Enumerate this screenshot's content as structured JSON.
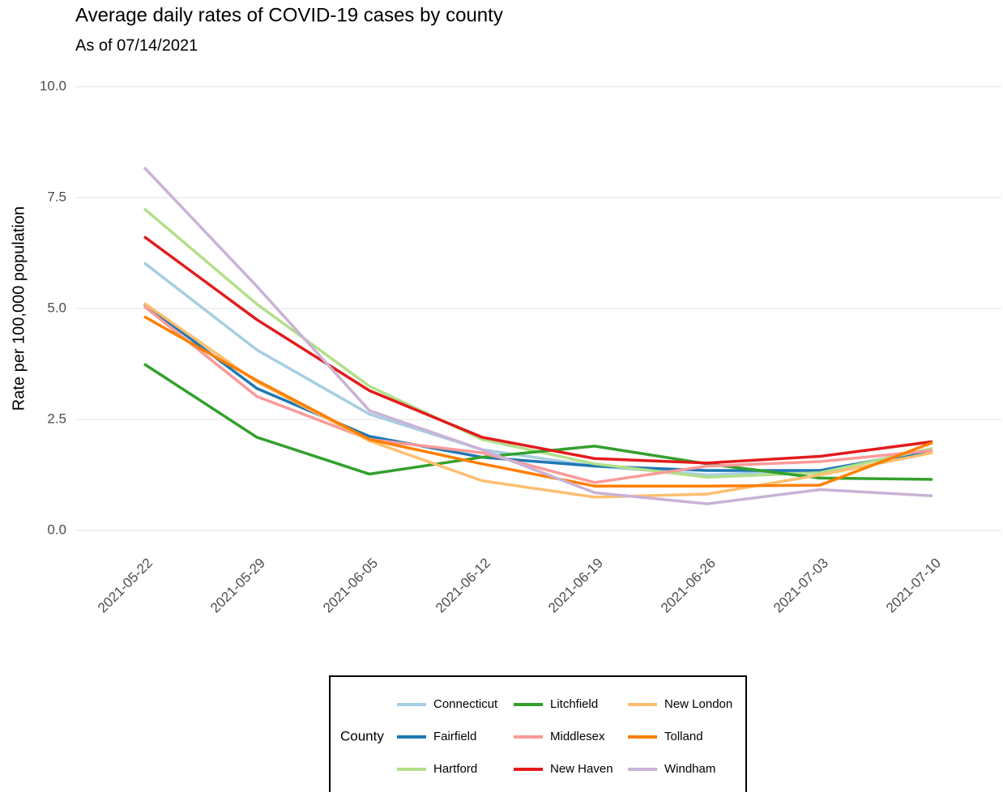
{
  "chart_data": {
    "type": "line",
    "title": "Average daily rates of COVID-19 cases by county",
    "subtitle": "As of 07/14/2021",
    "y_label": "Rate per 100,000 population",
    "legend_title": "County",
    "legend": "bottom",
    "grid": true,
    "x": [
      "2021-05-22",
      "2021-05-29",
      "2021-06-05",
      "2021-06-12",
      "2021-06-19",
      "2021-06-26",
      "2021-07-03",
      "2021-07-10"
    ],
    "ylim": [
      0,
      10
    ],
    "yticks": [
      {
        "value": 0,
        "label": "0.0"
      },
      2.5,
      {
        "value": 5,
        "label": "5.0"
      },
      7.5,
      {
        "value": 10,
        "label": "10.0"
      }
    ],
    "series": [
      {
        "name": "Connecticut",
        "color": "#a6cee3",
        "values": [
          6.03,
          4.07,
          2.62,
          1.82,
          1.45,
          1.25,
          1.35,
          1.82
        ]
      },
      {
        "name": "Fairfield",
        "color": "#1f78b4",
        "values": [
          5.1,
          3.2,
          2.12,
          1.65,
          1.45,
          1.35,
          1.35,
          1.8
        ]
      },
      {
        "name": "Hartford",
        "color": "#b2df8a",
        "values": [
          7.25,
          5.1,
          3.25,
          2.05,
          1.5,
          1.2,
          1.3,
          1.85
        ]
      },
      {
        "name": "Litchfield",
        "color": "#33a02c",
        "values": [
          3.75,
          2.1,
          1.27,
          1.65,
          1.9,
          1.5,
          1.18,
          1.15
        ]
      },
      {
        "name": "Middlesex",
        "color": "#fb9a99",
        "values": [
          5.05,
          3.02,
          2.05,
          1.75,
          1.08,
          1.45,
          1.55,
          1.8
        ]
      },
      {
        "name": "New Haven",
        "color": "#e31a1c",
        "values": [
          6.62,
          4.75,
          3.15,
          2.1,
          1.62,
          1.52,
          1.67,
          2.0
        ]
      },
      {
        "name": "New London",
        "color": "#fdbf6f",
        "values": [
          5.12,
          3.35,
          2.02,
          1.12,
          0.75,
          0.82,
          1.25,
          1.75
        ]
      },
      {
        "name": "Tolland",
        "color": "#ff7f00",
        "values": [
          4.82,
          3.38,
          2.05,
          1.5,
          1.0,
          1.0,
          1.02,
          1.98
        ]
      },
      {
        "name": "Windham",
        "color": "#cab2d6",
        "values": [
          8.18,
          5.5,
          2.7,
          1.82,
          0.85,
          0.6,
          0.92,
          0.78
        ]
      }
    ]
  }
}
